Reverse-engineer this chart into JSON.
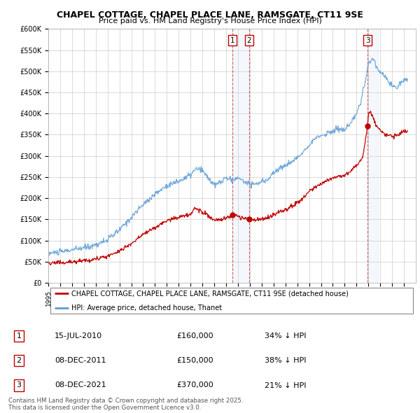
{
  "title_line1": "CHAPEL COTTAGE, CHAPEL PLACE LANE, RAMSGATE, CT11 9SE",
  "title_line2": "Price paid vs. HM Land Registry's House Price Index (HPI)",
  "ylabel_ticks": [
    "£0",
    "£50K",
    "£100K",
    "£150K",
    "£200K",
    "£250K",
    "£300K",
    "£350K",
    "£400K",
    "£450K",
    "£500K",
    "£550K",
    "£600K"
  ],
  "ytick_values": [
    0,
    50000,
    100000,
    150000,
    200000,
    250000,
    300000,
    350000,
    400000,
    450000,
    500000,
    550000,
    600000
  ],
  "hpi_color": "#5b9bd5",
  "price_color": "#c00000",
  "transactions": [
    {
      "date": 2010.54,
      "price": 160000,
      "label": "1"
    },
    {
      "date": 2011.93,
      "price": 150000,
      "label": "2"
    },
    {
      "date": 2021.93,
      "price": 370000,
      "label": "3"
    }
  ],
  "table_data": [
    {
      "num": "1",
      "date": "15-JUL-2010",
      "price": "£160,000",
      "desc": "34% ↓ HPI"
    },
    {
      "num": "2",
      "date": "08-DEC-2011",
      "price": "£150,000",
      "desc": "38% ↓ HPI"
    },
    {
      "num": "3",
      "date": "08-DEC-2021",
      "price": "£370,000",
      "desc": "21% ↓ HPI"
    }
  ],
  "footnote": "Contains HM Land Registry data © Crown copyright and database right 2025.\nThis data is licensed under the Open Government Licence v3.0.",
  "legend_entry1": "CHAPEL COTTAGE, CHAPEL PLACE LANE, RAMSGATE, CT11 9SE (detached house)",
  "legend_entry2": "HPI: Average price, detached house, Thanet",
  "xmin": 1995,
  "xmax": 2026,
  "ymin": 0,
  "ymax": 600000
}
